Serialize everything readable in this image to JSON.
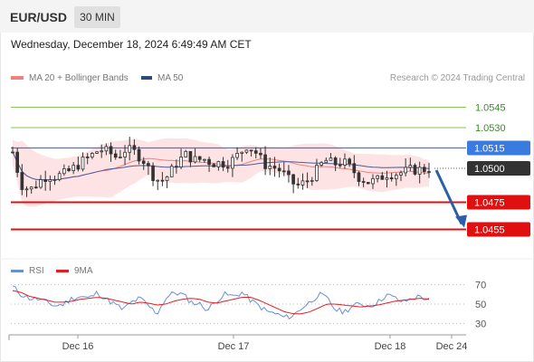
{
  "header": {
    "symbol": "EUR/USD",
    "timeframe": "30 MIN",
    "timestamp": "Wednesday, December 18, 2024 6:49:49 AM CET"
  },
  "legend": {
    "ma20_label": "MA 20 + Bollinger Bands",
    "ma50_label": "MA 50",
    "credit": "Research © 2024 Trading Central"
  },
  "rsi_legend": {
    "rsi_label": "RSI",
    "ma_label": "9MA"
  },
  "colors": {
    "ma20": "#f08080",
    "bollinger_fill": "#fde0e0",
    "ma50": "#4a5a9a",
    "candle": "#333333",
    "resistance_green": "#8ac45a",
    "pivot_blue": "#3a7be0",
    "support_red": "#e01010",
    "current_price": "#333333",
    "arrow": "#2a5fa8",
    "rsi": "#6b8fd6",
    "rsi_ma": "#e02020"
  },
  "chart_data": [
    {
      "type": "candlestick",
      "title": "EUR/USD",
      "timeframe": "30 MIN",
      "x_ticks": [
        "Dec 16",
        "Dec 17",
        "Dec 18",
        "Dec 24"
      ],
      "ylim": [
        1.044,
        1.056
      ],
      "price_levels": [
        {
          "label": "1.0545",
          "value": 1.0545,
          "role": "resistance",
          "color": "#8ac45a"
        },
        {
          "label": "1.0530",
          "value": 1.053,
          "role": "resistance",
          "color": "#8ac45a"
        },
        {
          "label": "1.0515",
          "value": 1.0515,
          "role": "pivot",
          "color": "#3a7be0"
        },
        {
          "label": "1.0500",
          "value": 1.05,
          "role": "current",
          "color": "#333333"
        },
        {
          "label": "1.0475",
          "value": 1.0475,
          "role": "support",
          "color": "#e01010"
        },
        {
          "label": "1.0455",
          "value": 1.0455,
          "role": "support",
          "color": "#e01010"
        }
      ],
      "close_path": [
        1.0512,
        1.0488,
        1.0484,
        1.049,
        1.0495,
        1.0494,
        1.0496,
        1.05,
        1.0505,
        1.0509,
        1.0514,
        1.0512,
        1.0508,
        1.0514,
        1.0512,
        1.0507,
        1.0496,
        1.049,
        1.0495,
        1.0505,
        1.051,
        1.0506,
        1.0507,
        1.0504,
        1.0504,
        1.0504,
        1.051,
        1.0517,
        1.0512,
        1.0503,
        1.0501,
        1.0498,
        1.049,
        1.0487,
        1.0491,
        1.0498,
        1.0506,
        1.0503,
        1.0505,
        1.05,
        1.0493,
        1.049,
        1.0491,
        1.0496,
        1.0496,
        1.0497,
        1.0499,
        1.0499,
        1.05
      ],
      "indicators": [
        "MA 20 + Bollinger Bands",
        "MA 50"
      ],
      "forecast": {
        "from": 1.05,
        "to": 1.0455,
        "direction": "down"
      }
    },
    {
      "type": "line",
      "series": [
        {
          "name": "RSI"
        },
        {
          "name": "9MA"
        }
      ],
      "y_ticks": [
        70,
        50,
        30
      ],
      "ylim": [
        20,
        80
      ],
      "rsi": [
        68,
        60,
        56,
        55,
        52,
        48,
        50,
        56,
        58,
        56,
        62,
        55,
        50,
        44,
        52,
        56,
        48,
        40,
        56,
        62,
        60,
        52,
        50,
        44,
        54,
        60,
        58,
        62,
        54,
        48,
        42,
        40,
        36,
        38,
        46,
        52,
        60,
        56,
        44,
        42,
        48,
        50,
        48,
        52,
        60,
        56,
        52,
        56,
        58,
        54
      ],
      "ma9": [
        64,
        62,
        58,
        56,
        54,
        52,
        52,
        53,
        55,
        56,
        57,
        56,
        54,
        52,
        50,
        52,
        51,
        49,
        50,
        53,
        55,
        56,
        55,
        52,
        51,
        53,
        55,
        57,
        57,
        54,
        50,
        46,
        42,
        40,
        40,
        42,
        46,
        50,
        50,
        49,
        48,
        47,
        48,
        49,
        51,
        53,
        54,
        55,
        56,
        55
      ]
    }
  ]
}
